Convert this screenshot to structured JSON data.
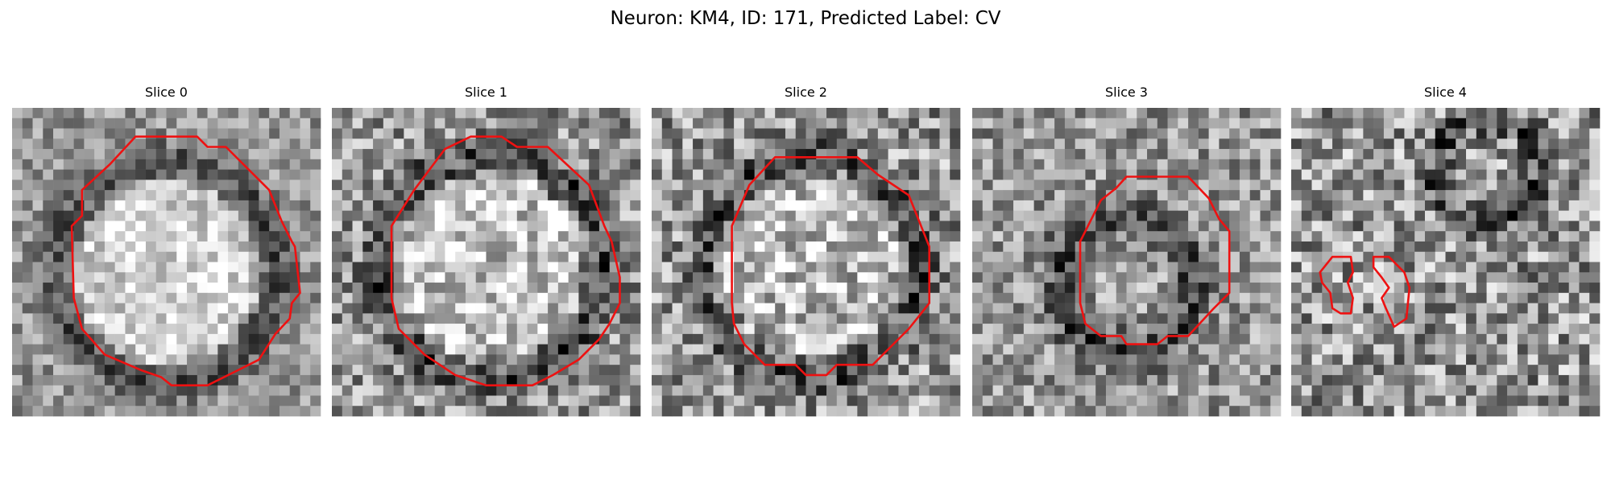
{
  "title": "Neuron: KM4, ID: 171, Predicted Label: CV",
  "panels": [
    {
      "title": "Slice 0"
    },
    {
      "title": "Slice 1"
    },
    {
      "title": "Slice 2"
    },
    {
      "title": "Slice 3"
    },
    {
      "title": "Slice 4"
    }
  ]
}
